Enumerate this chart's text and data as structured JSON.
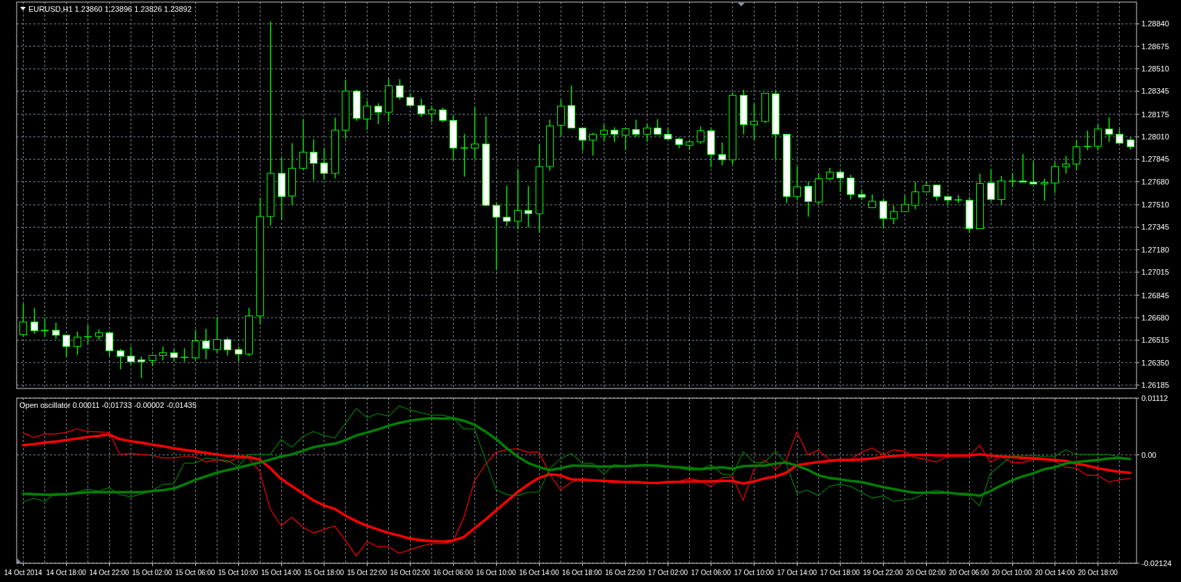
{
  "chart_data": [
    {
      "type": "candlestick",
      "title": "EURUSD,H1 1.23860 1.23896 1.23826 1.23892",
      "color": "#00ff00",
      "grid": true,
      "categories": [
        null,
        null,
        null,
        null,
        null,
        null,
        null,
        null,
        null,
        null,
        null,
        null,
        null,
        null,
        null,
        null,
        null,
        null,
        null,
        null,
        null,
        null,
        null,
        null,
        null,
        null,
        null,
        null,
        null,
        null,
        null,
        null,
        null,
        null,
        null,
        null,
        null,
        null,
        null,
        null,
        null,
        null,
        null,
        null,
        null,
        null,
        null,
        null,
        null,
        null,
        null,
        null,
        null,
        null,
        null,
        null,
        null,
        null,
        null,
        null,
        null,
        null,
        null,
        null,
        null,
        null,
        null,
        null,
        null,
        null,
        null,
        null,
        null,
        null,
        null,
        null,
        null,
        null,
        null,
        null,
        null,
        null,
        null,
        null,
        null,
        null,
        null,
        null,
        null,
        null,
        null,
        null,
        null,
        null,
        null,
        null,
        null,
        null,
        null,
        null,
        null,
        null,
        null,
        null
      ],
      "ylim": [
        1.2616,
        1.29
      ],
      "yticks": [
        {
          "value": 1.2884,
          "label": "1.28840"
        },
        1.28675,
        {
          "value": 1.2851,
          "label": "1.28510"
        },
        1.28345,
        1.28175,
        {
          "value": 1.2801,
          "label": "1.28010"
        },
        1.27845,
        {
          "value": 1.2768,
          "label": "1.27680"
        },
        {
          "value": 1.2751,
          "label": "1.27510"
        },
        1.27345,
        {
          "value": 1.2718,
          "label": "1.27180"
        },
        1.27015,
        1.26845,
        {
          "value": 1.2668,
          "label": "1.26680"
        },
        1.26515,
        {
          "value": 1.2635,
          "label": "1.26350"
        },
        1.26185
      ],
      "ohlc": [
        [
          1.26556,
          1.26781,
          1.26543,
          1.26649
        ],
        [
          1.26649,
          1.26752,
          1.26562,
          1.26584
        ],
        [
          1.26584,
          1.26679,
          1.26539,
          1.26588
        ],
        [
          1.26588,
          1.26645,
          1.26524,
          1.26552
        ],
        [
          1.26552,
          1.26556,
          1.26394,
          1.26468
        ],
        [
          1.26468,
          1.26577,
          1.26407,
          1.26537
        ],
        [
          1.26539,
          1.26627,
          1.26487,
          1.26541
        ],
        [
          1.26543,
          1.26595,
          1.26515,
          1.26569
        ],
        [
          1.26569,
          1.26571,
          1.26398,
          1.26437
        ],
        [
          1.26437,
          1.2645,
          1.26301,
          1.26396
        ],
        [
          1.26398,
          1.26468,
          1.26338,
          1.26357
        ],
        [
          1.2637,
          1.26394,
          1.26236,
          1.26357
        ],
        [
          1.26366,
          1.26407,
          1.26325,
          1.26403
        ],
        [
          1.26403,
          1.26468,
          1.26366,
          1.26422
        ],
        [
          1.26422,
          1.26446,
          1.26357,
          1.26388
        ],
        [
          1.26388,
          1.26455,
          1.26357,
          1.2639
        ],
        [
          1.26385,
          1.2659,
          1.2637,
          1.26509
        ],
        [
          1.26509,
          1.26599,
          1.26375,
          1.26454
        ],
        [
          1.26446,
          1.26683,
          1.26422,
          1.26519
        ],
        [
          1.26519,
          1.26534,
          1.26403,
          1.26444
        ],
        [
          1.26446,
          1.26468,
          1.26362,
          1.26413
        ],
        [
          1.26413,
          1.26752,
          1.26398,
          1.26694
        ],
        [
          1.26694,
          1.27562,
          1.26632,
          1.27424
        ],
        [
          1.27424,
          1.28859,
          1.27357,
          1.27741
        ],
        [
          1.27741,
          1.27856,
          1.274,
          1.27571
        ],
        [
          1.27575,
          1.27963,
          1.27506,
          1.27778
        ],
        [
          1.27778,
          1.28136,
          1.27767,
          1.27897
        ],
        [
          1.27897,
          1.27992,
          1.27689,
          1.27815
        ],
        [
          1.27817,
          1.27929,
          1.27694,
          1.27741
        ],
        [
          1.27741,
          1.28151,
          1.27704,
          1.28058
        ],
        [
          1.28058,
          1.2843,
          1.27996,
          1.28346
        ],
        [
          1.28346,
          1.28356,
          1.28127,
          1.28145
        ],
        [
          1.2814,
          1.28276,
          1.28061,
          1.28235
        ],
        [
          1.28235,
          1.28257,
          1.28102,
          1.2819
        ],
        [
          1.2819,
          1.28434,
          1.28117,
          1.28385
        ],
        [
          1.28385,
          1.28434,
          1.28281,
          1.283
        ],
        [
          1.283,
          1.28331,
          1.28236,
          1.2824
        ],
        [
          1.2824,
          1.2829,
          1.28158,
          1.28179
        ],
        [
          1.28179,
          1.28238,
          1.28117,
          1.28208
        ],
        [
          1.28208,
          1.28225,
          1.28117,
          1.2813
        ],
        [
          1.2813,
          1.28169,
          1.27838,
          1.27927
        ],
        [
          1.27927,
          1.2803,
          1.27717,
          1.27929
        ],
        [
          1.27927,
          1.28225,
          1.27845,
          1.27957
        ],
        [
          1.27957,
          1.2816,
          1.27499,
          1.27506
        ],
        [
          1.27506,
          1.27521,
          1.27033,
          1.27419
        ],
        [
          1.27419,
          1.27651,
          1.27353,
          1.27389
        ],
        [
          1.27389,
          1.27767,
          1.27329,
          1.27469
        ],
        [
          1.27469,
          1.27648,
          1.27344,
          1.27445
        ],
        [
          1.27445,
          1.27953,
          1.27305,
          1.27791
        ],
        [
          1.27791,
          1.28136,
          1.27761,
          1.28089
        ],
        [
          1.28095,
          1.28281,
          1.28017,
          1.28235
        ],
        [
          1.2824,
          1.28387,
          1.28074,
          1.28074
        ],
        [
          1.28074,
          1.28074,
          1.27905,
          1.27985
        ],
        [
          1.27985,
          1.28039,
          1.27871,
          1.28028
        ],
        [
          1.28028,
          1.28099,
          1.27974,
          1.28058
        ],
        [
          1.28058,
          1.2808,
          1.27972,
          1.28028
        ],
        [
          1.28022,
          1.28071,
          1.27912,
          1.28069
        ],
        [
          1.28063,
          1.28136,
          1.28009,
          1.28028
        ],
        [
          1.28028,
          1.28104,
          1.27972,
          1.28074
        ],
        [
          1.28074,
          1.2814,
          1.28026,
          1.28028
        ],
        [
          1.28028,
          1.28071,
          1.27987,
          1.27994
        ],
        [
          1.27994,
          1.28005,
          1.27925,
          1.27953
        ],
        [
          1.27948,
          1.27981,
          1.27912,
          1.27972
        ],
        [
          1.27972,
          1.28086,
          1.27959,
          1.28054
        ],
        [
          1.28054,
          1.28071,
          1.27787,
          1.27879
        ],
        [
          1.27879,
          1.27968,
          1.278,
          1.27841
        ],
        [
          1.27841,
          1.28337,
          1.2781,
          1.28315
        ],
        [
          1.28315,
          1.28356,
          1.28028,
          1.28099
        ],
        [
          1.28099,
          1.28251,
          1.27987,
          1.28123
        ],
        [
          1.28123,
          1.28331,
          1.28112,
          1.2833
        ],
        [
          1.28326,
          1.2835,
          1.27841,
          1.28028
        ],
        [
          1.28028,
          1.2803,
          1.27521,
          1.27571
        ],
        [
          1.27571,
          1.27791,
          1.27543,
          1.27642
        ],
        [
          1.27646,
          1.27679,
          1.27422,
          1.27534
        ],
        [
          1.2753,
          1.27741,
          1.27512,
          1.27702
        ],
        [
          1.27702,
          1.27782,
          1.27689,
          1.2775
        ],
        [
          1.2775,
          1.27763,
          1.27605,
          1.27707
        ],
        [
          1.27707,
          1.2773,
          1.27549,
          1.27586
        ],
        [
          1.27586,
          1.27618,
          1.27543,
          1.27566
        ],
        [
          1.27489,
          1.27586,
          1.27489,
          1.27536
        ],
        [
          1.27536,
          1.27549,
          1.27344,
          1.27409
        ],
        [
          1.27409,
          1.27502,
          1.27368,
          1.2746
        ],
        [
          1.2746,
          1.27577,
          1.27456,
          1.27512
        ],
        [
          1.27506,
          1.27679,
          1.27478,
          1.27605
        ],
        [
          1.27605,
          1.27678,
          1.27601,
          1.27651
        ],
        [
          1.27655,
          1.27657,
          1.2754,
          1.27571
        ],
        [
          1.27571,
          1.27573,
          1.27506,
          1.27545
        ],
        [
          1.27545,
          1.27581,
          1.27521,
          1.27547
        ],
        [
          1.27543,
          1.27568,
          1.27301,
          1.27335
        ],
        [
          1.27335,
          1.27739,
          1.27333,
          1.27666
        ],
        [
          1.2767,
          1.27773,
          1.27534,
          1.27549
        ],
        [
          1.27549,
          1.2772,
          1.27512,
          1.27685
        ],
        [
          1.27683,
          1.27745,
          1.27637,
          1.27685
        ],
        [
          1.27685,
          1.27884,
          1.27674,
          1.27676
        ],
        [
          1.27676,
          1.27834,
          1.27661,
          1.27663
        ],
        [
          1.27663,
          1.27702,
          1.2754,
          1.27672
        ],
        [
          1.2767,
          1.27825,
          1.27599,
          1.27791
        ],
        [
          1.27791,
          1.27869,
          1.27739,
          1.2781
        ],
        [
          1.2781,
          1.27983,
          1.27763,
          1.27936
        ],
        [
          1.27938,
          1.28056,
          1.27912,
          1.2794
        ],
        [
          1.2794,
          1.28099,
          1.27909,
          1.28067
        ],
        [
          1.28067,
          1.28154,
          1.27972,
          1.28028
        ],
        [
          1.28028,
          1.28067,
          1.27961,
          1.27963
        ],
        [
          1.27987,
          1.28005,
          1.27916,
          1.27936
        ]
      ]
    },
    {
      "type": "line",
      "title": "Open oscillator 0.00011 -0.01733 -0.00002 -0.01435",
      "grid": true,
      "categories": [
        "14 Oct 2014",
        null,
        null,
        null,
        "14 Oct 18:00",
        null,
        null,
        null,
        "14 Oct 22:00",
        null,
        null,
        null,
        "15 Oct 02:00",
        null,
        null,
        null,
        "15 Oct 06:00",
        null,
        null,
        null,
        "15 Oct 10:00",
        null,
        null,
        null,
        "15 Oct 14:00",
        null,
        null,
        null,
        "15 Oct 18:00",
        null,
        null,
        null,
        "15 Oct 22:00",
        null,
        null,
        null,
        "16 Oct 02:00",
        null,
        null,
        null,
        "16 Oct 06:00",
        null,
        null,
        null,
        "16 Oct 10:00",
        null,
        null,
        null,
        "16 Oct 14:00",
        null,
        null,
        null,
        "16 Oct 18:00",
        null,
        null,
        null,
        "16 Oct 22:00",
        null,
        null,
        null,
        "17 Oct 02:00",
        null,
        null,
        null,
        "17 Oct 06:00",
        null,
        null,
        null,
        "17 Oct 10:00",
        null,
        null,
        null,
        "17 Oct 14:00",
        null,
        null,
        null,
        "17 Oct 18:00",
        null,
        null,
        null,
        "19 Oct 22:00",
        null,
        null,
        null,
        "20 Oct 02:00",
        null,
        null,
        null,
        "20 Oct 06:00",
        null,
        null,
        null,
        "20 Oct 10:00",
        null,
        null,
        null,
        "20 Oct 14:00",
        null,
        null,
        null,
        "20 Oct 18:00",
        null,
        null,
        null
      ],
      "ylim": [
        -0.02124,
        0.01112
      ],
      "yticks": [
        -0.02124,
        {
          "value": 0,
          "label": "0.00"
        },
        0.01112
      ],
      "series": [
        {
          "color": "#ff0000",
          "values": [
            0.0043,
            0.0034,
            0.0041,
            0.0041,
            0.0044,
            0.0051,
            0.0046,
            0.0045,
            0.0044,
            0.0001,
            0.0003,
            0.0001,
            -0.0001,
            -0.0006,
            -0.0006,
            -0.0003,
            -0.0003,
            -0.0014,
            -0.0009,
            -0.0014,
            -0.0006,
            -0.0006,
            -0.0032,
            -0.0106,
            -0.0139,
            -0.0122,
            -0.0141,
            -0.0153,
            -0.0146,
            -0.0139,
            -0.0168,
            -0.0198,
            -0.017,
            -0.018,
            -0.018,
            -0.0193,
            -0.0186,
            -0.0179,
            -0.0174,
            -0.0174,
            -0.017,
            -0.0123,
            -0.0051,
            -0.0019,
            0.0005,
            0.001,
            0.0012,
            0.0005,
            0.0006,
            -0.0038,
            -0.0068,
            -0.0054,
            -0.0046,
            -0.0049,
            -0.0052,
            -0.0055,
            -0.0052,
            -0.0052,
            -0.0054,
            -0.0055,
            -0.0052,
            -0.0052,
            -0.0046,
            -0.0051,
            -0.0062,
            -0.0045,
            -0.0043,
            -0.0089,
            -0.0028,
            -0.001,
            -0.0028,
            -0.001,
            0.0045,
            0,
            0.0009,
            -0.0009,
            -0.0009,
            -0.0009,
            0.0005,
            0.0014,
            0,
            0.001,
            0.0007,
            -0.0005,
            -0.0009,
            -0.0014,
            -0.0003,
            -0.0003,
            -0.0003,
            0.0019,
            -0.0014,
            -0.0003,
            -0.0015,
            -0.0015,
            -0.0009,
            -0.001,
            -0.0012,
            -0.0024,
            -0.0026,
            -0.004,
            -0.004,
            -0.0053,
            -0.0049,
            -0.0046
          ]
        },
        {
          "color": "#ff0000",
          "values": [
            0.0019,
            0.0021,
            0.0024,
            0.0026,
            0.0029,
            0.0032,
            0.0035,
            0.0037,
            0.004,
            0.0031,
            0.0027,
            0.0024,
            0.002,
            0.0017,
            0.0013,
            0.001,
            0.0007,
            0.0004,
            0.0001,
            -0.0002,
            -0.0003,
            -0.0004,
            -0.0009,
            -0.0026,
            -0.0047,
            -0.0061,
            -0.0075,
            -0.0089,
            -0.0099,
            -0.0106,
            -0.0119,
            -0.013,
            -0.0139,
            -0.0146,
            -0.0153,
            -0.0158,
            -0.0164,
            -0.0167,
            -0.0169,
            -0.017,
            -0.0168,
            -0.0161,
            -0.0144,
            -0.0127,
            -0.0109,
            -0.0091,
            -0.0073,
            -0.0058,
            -0.0045,
            -0.0038,
            -0.004,
            -0.0048,
            -0.0049,
            -0.005,
            -0.0051,
            -0.0052,
            -0.0053,
            -0.0053,
            -0.0055,
            -0.0055,
            -0.0053,
            -0.0053,
            -0.0052,
            -0.0052,
            -0.0052,
            -0.0051,
            -0.0051,
            -0.0056,
            -0.0052,
            -0.0046,
            -0.0042,
            -0.0035,
            -0.002,
            -0.0017,
            -0.0014,
            -0.0012,
            -0.001,
            -0.001,
            -0.0009,
            -0.0007,
            -0.0004,
            -0.0002,
            -0.0001,
            0,
            0,
            -0.0001,
            -0.0001,
            -0.0001,
            -0.0001,
            0.0001,
            -0.0001,
            -0.0003,
            -0.0004,
            -0.0006,
            -0.0006,
            -0.0008,
            -0.001,
            -0.0012,
            -0.0017,
            -0.0021,
            -0.0026,
            -0.003,
            -0.0033,
            -0.0035
          ]
        },
        {
          "color": "#008000",
          "values": [
            -0.0092,
            -0.0085,
            -0.0091,
            -0.0075,
            -0.0077,
            -0.0073,
            -0.0067,
            -0.0071,
            -0.0064,
            -0.0078,
            -0.0082,
            -0.0077,
            -0.007,
            -0.0058,
            -0.0057,
            -0.0016,
            -0.0016,
            -0.0006,
            -0.0009,
            -0.0011,
            -0.0023,
            0.0001,
            0.0001,
            0.0001,
            0.003,
            0.0015,
            0.0035,
            0.0046,
            0.0038,
            0.0033,
            0.0062,
            0.0091,
            0.0073,
            0.0081,
            0.0076,
            0.0096,
            0.0088,
            0.0083,
            0.0078,
            0.0078,
            0.0073,
            0.0051,
            0.0051,
            -0.0009,
            -0.0068,
            -0.0078,
            -0.008,
            -0.0073,
            -0.0073,
            -0.0026,
            -0.0008,
            0.0003,
            -0.0016,
            -0.0017,
            -0.0037,
            -0.0019,
            -0.0022,
            -0.0019,
            -0.0022,
            -0.0019,
            -0.0022,
            -0.0026,
            -0.003,
            -0.0028,
            -0.0019,
            -0.0037,
            -0.004,
            0.0006,
            -0.0015,
            -0.0015,
            0.0008,
            -0.0017,
            -0.0075,
            -0.0069,
            -0.008,
            -0.0062,
            -0.0057,
            -0.0062,
            -0.0073,
            -0.0085,
            -0.008,
            -0.0091,
            -0.0088,
            -0.0085,
            -0.0074,
            -0.0069,
            -0.0074,
            -0.0078,
            -0.008,
            -0.01,
            -0.0037,
            -0.0019,
            -0.0002,
            -0.0002,
            -0.0001,
            -0.0003,
            -0.0003,
            0.001,
            0.0001,
            0.0001,
            0.0001,
            0.0001,
            -0.0004,
            -0.0008
          ]
        },
        {
          "color": "#008000",
          "values": [
            -0.0076,
            -0.0077,
            -0.0078,
            -0.0078,
            -0.0077,
            -0.0075,
            -0.0073,
            -0.0073,
            -0.0073,
            -0.0073,
            -0.0073,
            -0.0073,
            -0.0071,
            -0.0069,
            -0.0066,
            -0.0058,
            -0.0049,
            -0.0042,
            -0.0035,
            -0.003,
            -0.0025,
            -0.002,
            -0.0015,
            -0.0009,
            -0.0003,
            0.0001,
            0.0008,
            0.0015,
            0.0019,
            0.0022,
            0.0029,
            0.0038,
            0.0044,
            0.005,
            0.0057,
            0.0063,
            0.0067,
            0.007,
            0.0072,
            0.0071,
            0.0072,
            0.0067,
            0.0059,
            0.0046,
            0.0031,
            0.0013,
            -0.0003,
            -0.0016,
            -0.0024,
            -0.003,
            -0.0026,
            -0.0021,
            -0.0021,
            -0.0022,
            -0.0023,
            -0.0022,
            -0.0022,
            -0.0021,
            -0.002,
            -0.0021,
            -0.0023,
            -0.0024,
            -0.0026,
            -0.0028,
            -0.0026,
            -0.0024,
            -0.0027,
            -0.0022,
            -0.0021,
            -0.0021,
            -0.0017,
            -0.0015,
            -0.0021,
            -0.0029,
            -0.004,
            -0.0045,
            -0.0048,
            -0.0051,
            -0.0053,
            -0.0058,
            -0.0063,
            -0.0067,
            -0.0071,
            -0.0074,
            -0.0074,
            -0.0074,
            -0.0074,
            -0.0076,
            -0.0077,
            -0.008,
            -0.0071,
            -0.006,
            -0.005,
            -0.0042,
            -0.0036,
            -0.0028,
            -0.0024,
            -0.0017,
            -0.0014,
            -0.0012,
            -0.001,
            -0.0007,
            -0.0006,
            -0.0008
          ]
        }
      ]
    }
  ]
}
